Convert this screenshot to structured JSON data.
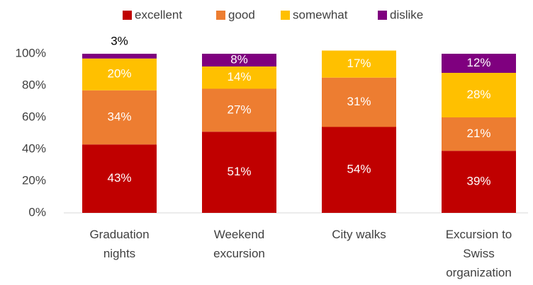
{
  "chart_data": {
    "type": "stacked_bar",
    "categories": [
      "Graduation nights",
      "Weekend excursion",
      "City walks",
      "Excursion to Swiss organization"
    ],
    "series": [
      {
        "name": "excellent",
        "color": "#c00000",
        "values": [
          43,
          51,
          54,
          39
        ],
        "value_labels": [
          "43%",
          "51%",
          "54%",
          "39%"
        ]
      },
      {
        "name": "good",
        "color": "#ed7d31",
        "values": [
          34,
          27,
          31,
          21
        ],
        "value_labels": [
          "34%",
          "27%",
          "31%",
          "21%"
        ]
      },
      {
        "name": "somewhat",
        "color": "#ffc000",
        "values": [
          20,
          14,
          17,
          28
        ],
        "value_labels": [
          "20%",
          "14%",
          "17%",
          "28%"
        ]
      },
      {
        "name": "dislike",
        "color": "#7f007f",
        "values": [
          3,
          8,
          null,
          12
        ],
        "value_labels": [
          "3%",
          "8%",
          null,
          "12%"
        ]
      }
    ],
    "ylim": [
      0,
      100
    ],
    "yticks": [
      {
        "value": 0,
        "label": "0%"
      },
      {
        "value": 20,
        "label": "20%"
      },
      {
        "value": 40,
        "label": "40%"
      },
      {
        "value": 60,
        "label": "60%"
      },
      {
        "value": 80,
        "label": "80%"
      },
      {
        "value": 100,
        "label": "100%"
      }
    ],
    "legend": "top",
    "grid": false
  }
}
